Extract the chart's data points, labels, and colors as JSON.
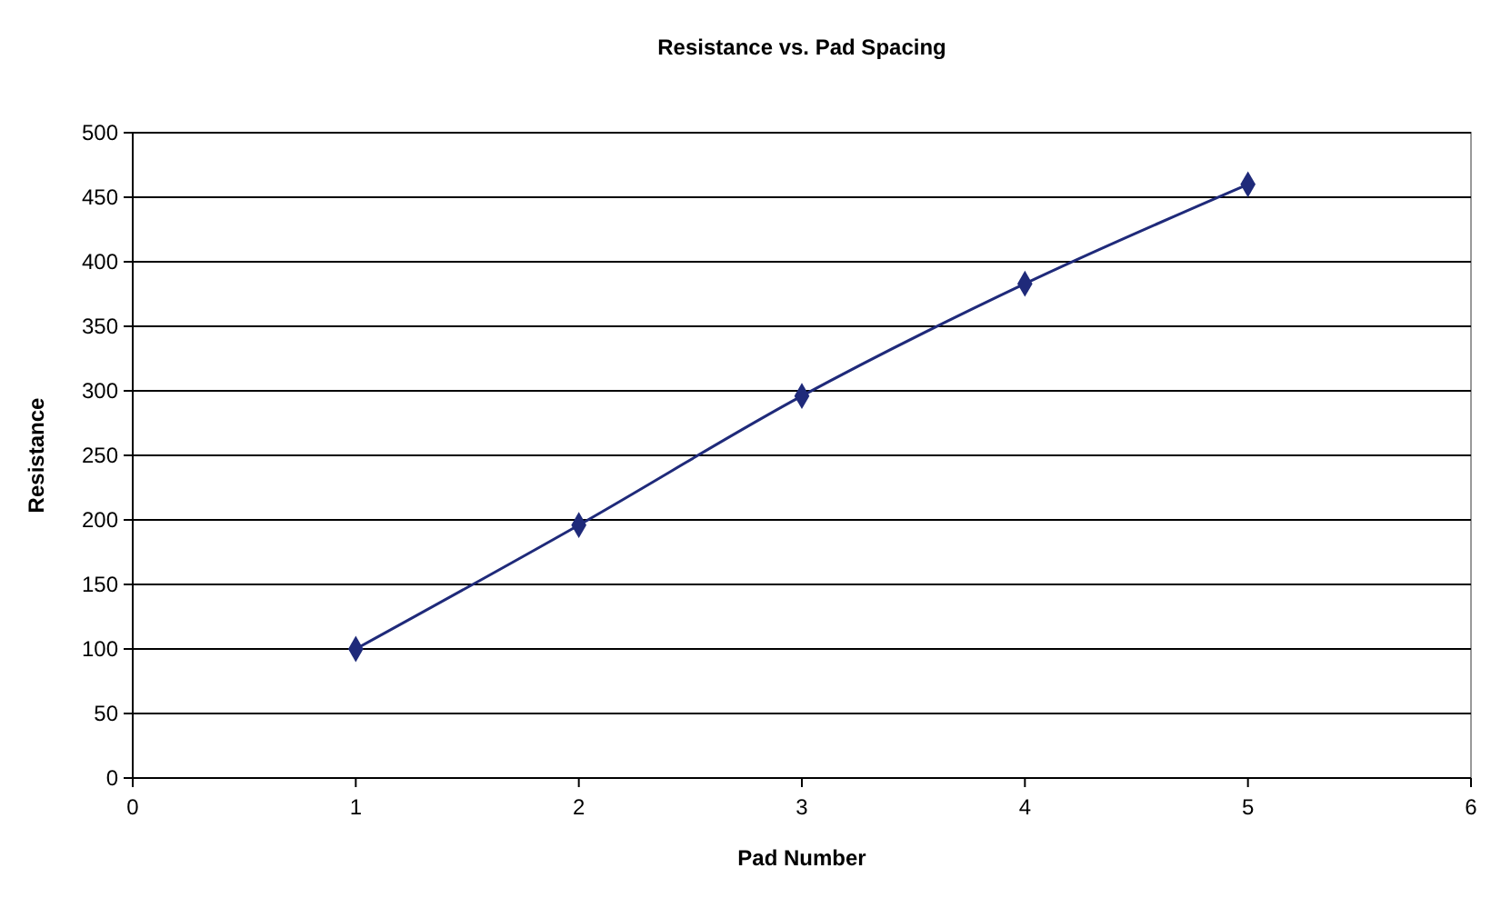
{
  "chart_data": {
    "type": "line",
    "title": "Resistance vs. Pad Spacing",
    "xlabel": "Pad Number",
    "ylabel": "Resistance",
    "x": [
      1,
      2,
      3,
      4,
      5
    ],
    "series": [
      {
        "color": "#1f2a7a",
        "values": [
          100,
          196,
          296,
          383,
          460
        ]
      }
    ],
    "xlim": [
      0,
      6
    ],
    "xticks": [
      0,
      1,
      2,
      3,
      4,
      5,
      6
    ],
    "ylim": [
      0,
      500
    ],
    "yticks": [
      0,
      50,
      100,
      150,
      200,
      250,
      300,
      350,
      400,
      450,
      500
    ],
    "grid": "y",
    "marker": "diamond",
    "line_style": "solid"
  }
}
